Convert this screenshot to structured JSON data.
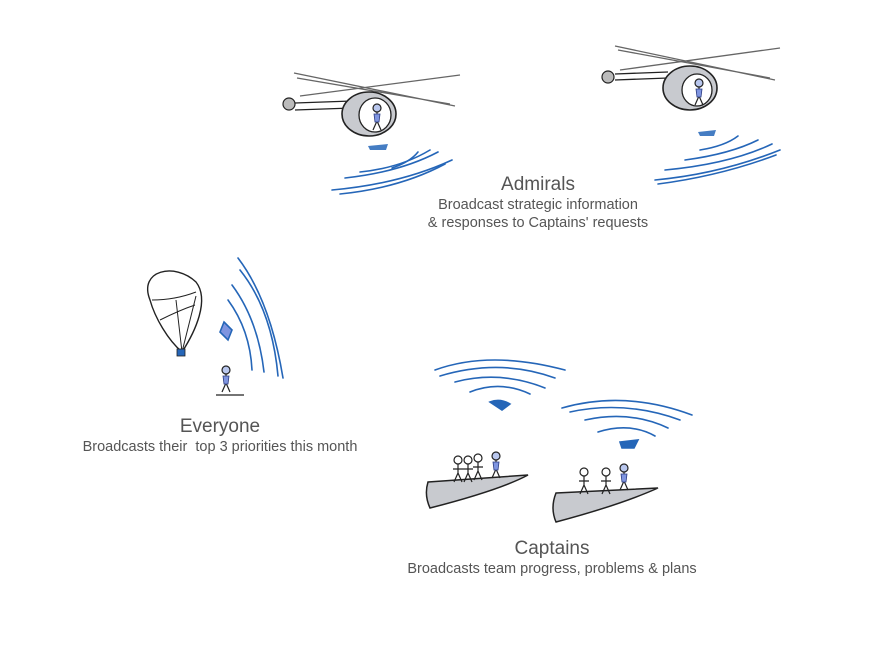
{
  "groups": {
    "admirals": {
      "title": "Admirals",
      "line1": "Broadcast strategic information",
      "line2": "& responses to Captains' requests"
    },
    "everyone": {
      "title": "Everyone",
      "line1": "Broadcasts their  top 3 priorities this month"
    },
    "captains": {
      "title": "Captains",
      "line1": "Broadcasts team progress, problems & plans"
    }
  },
  "colors": {
    "signal": "#2566b8",
    "ink": "#222222",
    "hull": "#c8cacf",
    "text": "#555555"
  }
}
